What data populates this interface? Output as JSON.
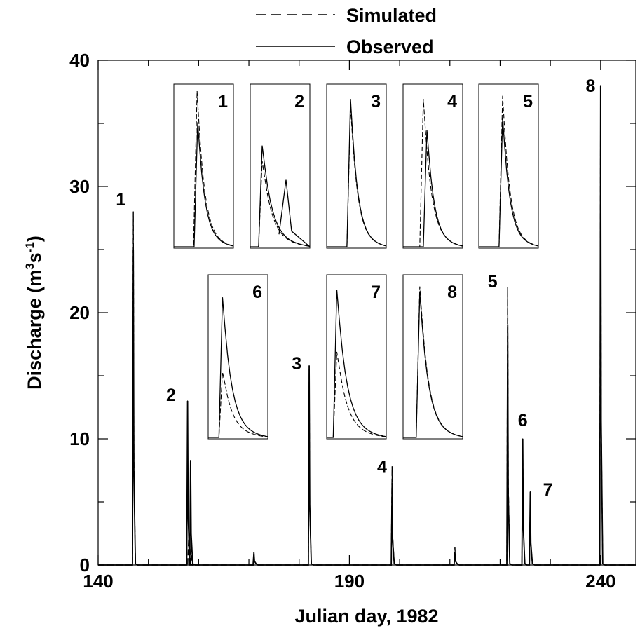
{
  "chart_data": {
    "type": "line",
    "xlabel": "Julian day, 1982",
    "ylabel": "Discharge (m3s-1)",
    "ylabel_parts": {
      "pre": "Discharge (m",
      "sup1": "3",
      "mid": "s",
      "sup2": "-1",
      "post": ")"
    },
    "xlim": [
      140,
      247
    ],
    "ylim": [
      0,
      40
    ],
    "xticks": [
      "140",
      "190",
      "240"
    ],
    "yticks": [
      "0",
      "10",
      "20",
      "30",
      "40"
    ],
    "legend": {
      "placement": "top-center",
      "entries": [
        {
          "label": "Simulated",
          "style": "dashed"
        },
        {
          "label": "Observed",
          "style": "solid"
        }
      ]
    },
    "series": [
      {
        "name": "Simulated",
        "style": "dashed",
        "color": "#000000",
        "peaks": [
          {
            "event": "1",
            "x": 147.0,
            "y": 28.0
          },
          {
            "event": "2",
            "x": 158.0,
            "y": 2.0
          },
          {
            "event": "2b",
            "x": 158.5,
            "y": 1.5
          },
          {
            "event": "3",
            "x": 182.0,
            "y": 15.5
          },
          {
            "event": "4",
            "x": 198.5,
            "y": 7.8
          },
          {
            "event": "m",
            "x": 211.0,
            "y": 1.4
          },
          {
            "event": "5",
            "x": 221.5,
            "y": 22.0
          },
          {
            "event": "6",
            "x": 224.5,
            "y": 9.7
          },
          {
            "event": "7",
            "x": 226.0,
            "y": 5.0
          },
          {
            "event": "8",
            "x": 240.0,
            "y": 38.0
          }
        ]
      },
      {
        "name": "Observed",
        "style": "solid",
        "color": "#000000",
        "peaks": [
          {
            "event": "1",
            "x": 147.0,
            "y": 25.0
          },
          {
            "event": "2",
            "x": 157.8,
            "y": 13.0
          },
          {
            "event": "2b",
            "x": 158.4,
            "y": 8.3
          },
          {
            "event": "m",
            "x": 171.0,
            "y": 1.0
          },
          {
            "event": "3",
            "x": 182.0,
            "y": 15.8
          },
          {
            "event": "4",
            "x": 198.5,
            "y": 6.5
          },
          {
            "event": "m",
            "x": 211.0,
            "y": 1.0
          },
          {
            "event": "5",
            "x": 221.5,
            "y": 19.0
          },
          {
            "event": "6",
            "x": 224.5,
            "y": 10.0
          },
          {
            "event": "7",
            "x": 226.0,
            "y": 5.8
          },
          {
            "event": "8",
            "x": 240.0,
            "y": 38.0
          }
        ]
      }
    ],
    "event_labels": [
      {
        "label": "1",
        "x": 144.5,
        "y": 28.5
      },
      {
        "label": "2",
        "x": 154.5,
        "y": 13.0
      },
      {
        "label": "3",
        "x": 179.5,
        "y": 15.5
      },
      {
        "label": "4",
        "x": 196.5,
        "y": 7.3
      },
      {
        "label": "5",
        "x": 218.5,
        "y": 22.0
      },
      {
        "label": "6",
        "x": 224.5,
        "y": 11.0
      },
      {
        "label": "7",
        "x": 229.5,
        "y": 5.5
      },
      {
        "label": "8",
        "x": 238.0,
        "y": 37.5
      }
    ],
    "insets": [
      {
        "label": "1",
        "sim_peak": 1.0,
        "obs_peak": 0.8,
        "sim_lead": 0.01
      },
      {
        "label": "2",
        "sim_peak": 0.55,
        "obs_peak": 0.65,
        "obs_second": 0.43
      },
      {
        "label": "3",
        "sim_peak": 0.9,
        "obs_peak": 0.95
      },
      {
        "label": "4",
        "sim_peak": 0.95,
        "obs_peak": 0.75,
        "sim_lead": 0.06
      },
      {
        "label": "5",
        "sim_peak": 0.97,
        "obs_peak": 0.83
      },
      {
        "label": "6",
        "sim_peak": 0.42,
        "obs_peak": 0.9
      },
      {
        "label": "7",
        "sim_peak": 0.55,
        "obs_peak": 0.95
      },
      {
        "label": "8",
        "sim_peak": 0.97,
        "obs_peak": 0.93
      }
    ]
  }
}
